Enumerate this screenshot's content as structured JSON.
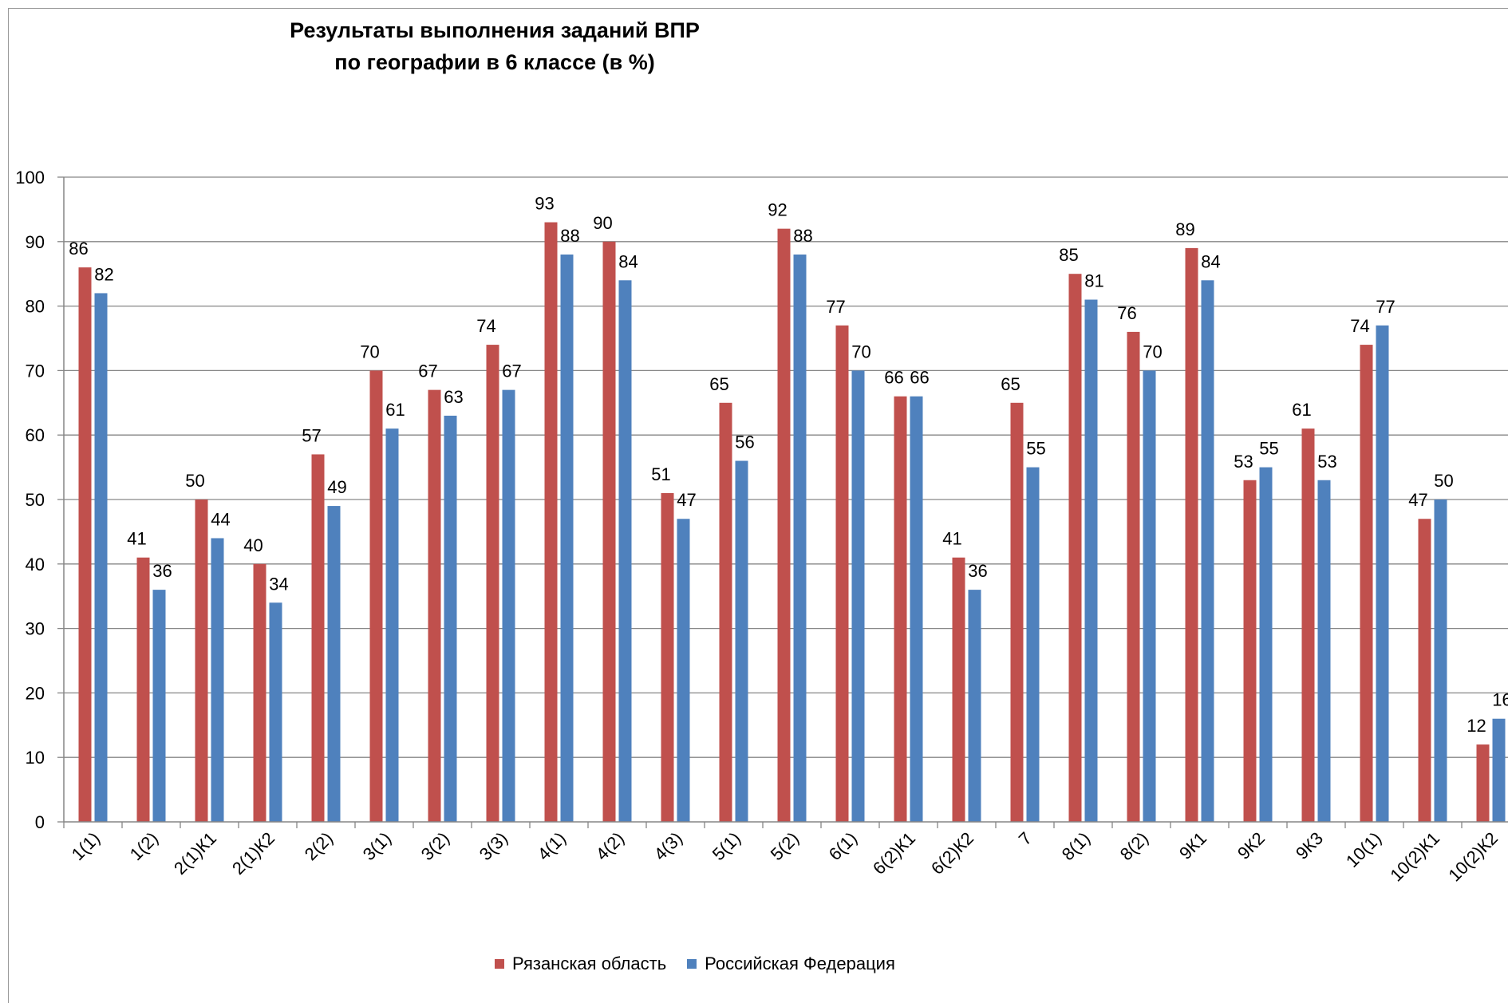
{
  "chart_data": {
    "type": "bar",
    "title": "Результаты выполнения заданий ВПР",
    "subtitle": "по географии в 6 классе (в %)",
    "xlabel": "",
    "ylabel": "",
    "ylim": [
      0,
      100
    ],
    "yticks": [
      "0",
      "10",
      "20",
      "30",
      "40",
      "50",
      "60",
      "70",
      "80",
      "90",
      "100"
    ],
    "grid": true,
    "legend_position": "bottom",
    "categories": [
      "1(1)",
      "1(2)",
      "2(1)К1",
      "2(1)К2",
      "2(2)",
      "3(1)",
      "3(2)",
      "3(3)",
      "4(1)",
      "4(2)",
      "4(3)",
      "5(1)",
      "5(2)",
      "6(1)",
      "6(2)К1",
      "6(2)К2",
      "7",
      "8(1)",
      "8(2)",
      "9К1",
      "9К2",
      "9К3",
      "10(1)",
      "10(2)К1",
      "10(2)К2"
    ],
    "series": [
      {
        "name": "Рязанская область",
        "color": "#C0504D",
        "values": [
          86,
          41,
          50,
          40,
          57,
          70,
          67,
          74,
          93,
          90,
          51,
          65,
          92,
          77,
          66,
          41,
          65,
          85,
          76,
          89,
          53,
          61,
          74,
          47,
          12
        ]
      },
      {
        "name": "Российская Федерация",
        "color": "#4F81BD",
        "values": [
          82,
          36,
          44,
          34,
          49,
          61,
          63,
          67,
          88,
          84,
          47,
          56,
          88,
          70,
          66,
          36,
          55,
          81,
          70,
          84,
          55,
          53,
          77,
          50,
          16
        ]
      }
    ]
  }
}
